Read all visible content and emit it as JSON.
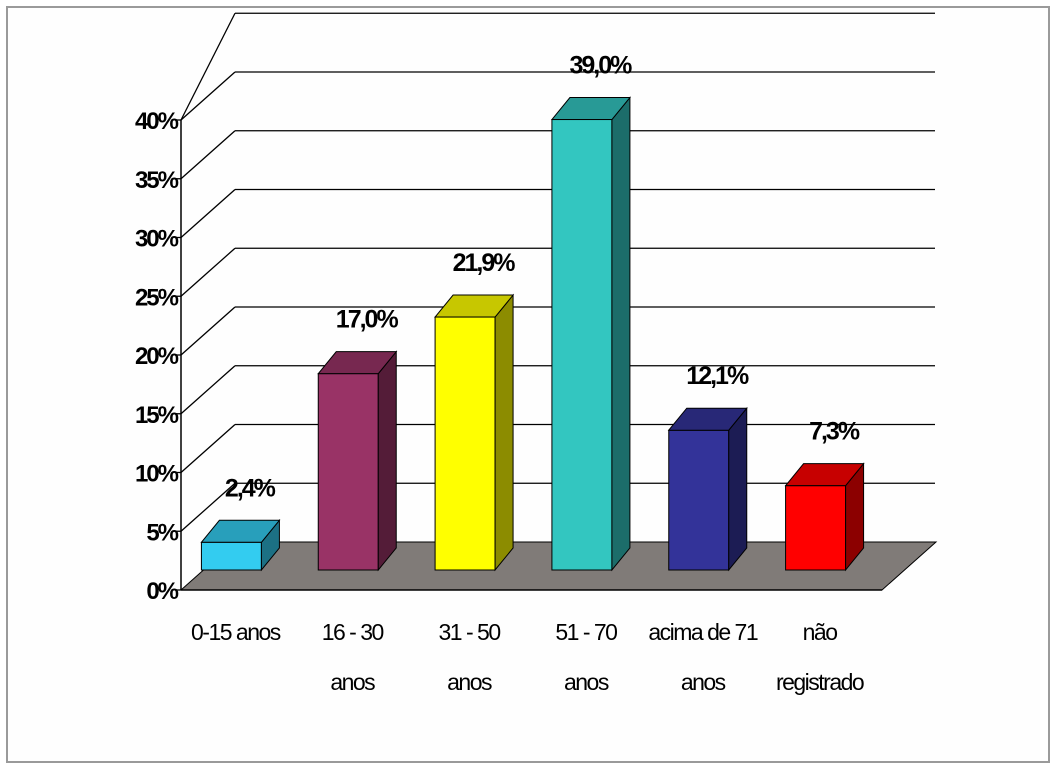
{
  "chart_data": {
    "type": "bar",
    "title": "",
    "xlabel": "",
    "ylabel": "",
    "ylim": [
      0,
      40
    ],
    "y_ticks": [
      "0%",
      "5%",
      "10%",
      "15%",
      "20%",
      "25%",
      "30%",
      "35%",
      "40%"
    ],
    "categories": [
      [
        "0-15 anos"
      ],
      [
        "16 - 30",
        "anos"
      ],
      [
        "31 - 50",
        "anos"
      ],
      [
        "51 - 70",
        "anos"
      ],
      [
        "acima de 71",
        "anos"
      ],
      [
        "não",
        "registrado"
      ]
    ],
    "values": [
      2.4,
      17.0,
      21.9,
      39.0,
      12.1,
      7.3
    ],
    "data_labels": [
      "2,4%",
      "17,0%",
      "21,9%",
      "39,0%",
      "12,1%",
      "7,3%"
    ],
    "colors": [
      "#33ccf0",
      "#993366",
      "#ffff00",
      "#33c6c0",
      "#333399",
      "#ff0000"
    ],
    "grid": true,
    "style": "3d",
    "floor_color": "#807b78"
  }
}
